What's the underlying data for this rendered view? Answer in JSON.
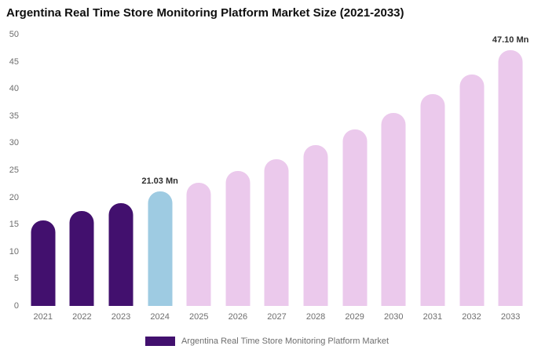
{
  "title": "Argentina Real Time Store Monitoring Platform Market Size (2021-2033)",
  "legend": {
    "label": "Argentina Real Time Store Monitoring Platform Market",
    "swatch_color": "#42106e"
  },
  "chart_data": {
    "type": "bar",
    "title": "Argentina Real Time Store Monitoring Platform Market Size (2021-2033)",
    "categories": [
      "2021",
      "2022",
      "2023",
      "2024",
      "2025",
      "2026",
      "2027",
      "2028",
      "2029",
      "2030",
      "2031",
      "2032",
      "2033"
    ],
    "values": [
      15.7,
      17.5,
      19.0,
      21.03,
      22.7,
      24.8,
      27.0,
      29.6,
      32.5,
      35.5,
      39.0,
      42.6,
      47.1
    ],
    "value_labels": [
      "",
      "",
      "",
      "21.03 Mn",
      "",
      "",
      "",
      "",
      "",
      "",
      "",
      "",
      "47.10 Mn"
    ],
    "bar_colors": [
      "#42106e",
      "#42106e",
      "#42106e",
      "#9ecbe2",
      "#ebc9ec",
      "#ebc9ec",
      "#ebc9ec",
      "#ebc9ec",
      "#ebc9ec",
      "#ebc9ec",
      "#ebc9ec",
      "#ebc9ec",
      "#ebc9ec"
    ],
    "xlabel": "",
    "ylabel": "",
    "ylim": [
      0,
      50
    ],
    "yticks": [
      0,
      5,
      10,
      15,
      20,
      25,
      30,
      35,
      40,
      45,
      50
    ],
    "grid": false,
    "legend_position": "bottom",
    "unit": "Mn"
  }
}
